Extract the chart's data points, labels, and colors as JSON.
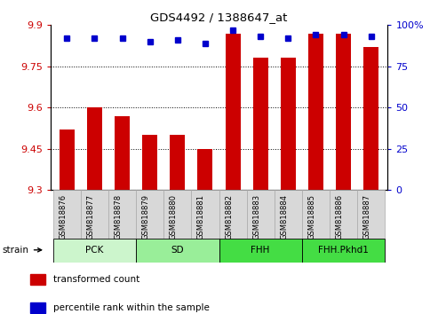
{
  "title": "GDS4492 / 1388647_at",
  "samples": [
    "GSM818876",
    "GSM818877",
    "GSM818878",
    "GSM818879",
    "GSM818880",
    "GSM818881",
    "GSM818882",
    "GSM818883",
    "GSM818884",
    "GSM818885",
    "GSM818886",
    "GSM818887"
  ],
  "red_values": [
    9.52,
    9.6,
    9.57,
    9.5,
    9.5,
    9.45,
    9.87,
    9.78,
    9.78,
    9.87,
    9.87,
    9.82
  ],
  "blue_values": [
    92,
    92,
    92,
    90,
    91,
    89,
    97,
    93,
    92,
    94,
    94,
    93
  ],
  "ylim_left": [
    9.3,
    9.9
  ],
  "ylim_right": [
    0,
    100
  ],
  "left_ticks": [
    9.3,
    9.45,
    9.6,
    9.75,
    9.9
  ],
  "right_ticks": [
    0,
    25,
    50,
    75,
    100
  ],
  "right_tick_labels": [
    "0",
    "25",
    "50",
    "75",
    "100%"
  ],
  "groups": [
    {
      "label": "PCK",
      "indices": [
        0,
        1,
        2
      ],
      "color": "#ccf5cc"
    },
    {
      "label": "SD",
      "indices": [
        3,
        4,
        5
      ],
      "color": "#99ee99"
    },
    {
      "label": "FHH",
      "indices": [
        6,
        7,
        8
      ],
      "color": "#44dd44"
    },
    {
      "label": "FHH.Pkhd1",
      "indices": [
        9,
        10,
        11
      ],
      "color": "#44dd44"
    }
  ],
  "bar_color": "#cc0000",
  "dot_color": "#0000cc",
  "bar_bottom": 9.3,
  "legend_items": [
    {
      "label": "transformed count",
      "color": "#cc0000"
    },
    {
      "label": "percentile rank within the sample",
      "color": "#0000cc"
    }
  ],
  "tick_color_left": "#cc0000",
  "tick_color_right": "#0000cc",
  "cell_color": "#d8d8d8",
  "cell_edge_color": "#aaaaaa"
}
